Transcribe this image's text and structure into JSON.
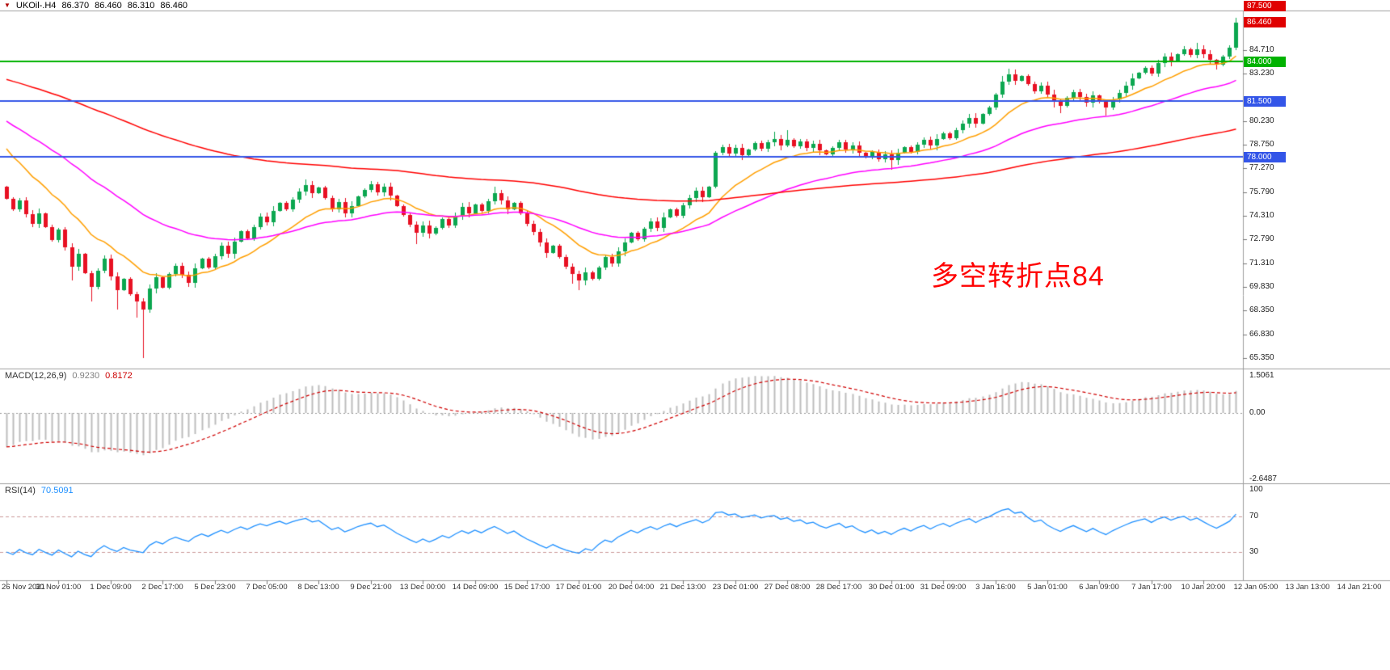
{
  "header": {
    "dropdown_icon": "▼",
    "symbol": "UKOil-.H4",
    "open": "86.370",
    "high": "86.460",
    "low": "86.310",
    "close": "86.460"
  },
  "annotation": {
    "text": "多空转折点84",
    "color": "#ff0000"
  },
  "price_scale": {
    "ticks": [
      "84.710",
      "83.230",
      "80.230",
      "78.750",
      "77.270",
      "75.790",
      "74.310",
      "72.790",
      "71.310",
      "69.830",
      "68.350",
      "66.830",
      "65.350"
    ],
    "markers": [
      {
        "text": "87.500",
        "value": 87.5,
        "color": "#e00000"
      },
      {
        "text": "86.460",
        "value": 86.46,
        "color": "#e00000"
      },
      {
        "text": "84.000",
        "value": 84.0,
        "color": "#00b200"
      },
      {
        "text": "81.500",
        "value": 81.5,
        "color": "#3355e8"
      },
      {
        "text": "78.000",
        "value": 78.0,
        "color": "#3355e8"
      }
    ]
  },
  "macd_panel": {
    "name": "MACD(12,26,9)",
    "value_main": "0.9230",
    "value_signal": "0.8172",
    "scale": [
      {
        "text": "1.5061",
        "value": 1.5061
      },
      {
        "text": "0.00",
        "value": 0
      },
      {
        "text": "-2.6487",
        "value": -2.6487
      }
    ]
  },
  "rsi_panel": {
    "name": "RSI(14)",
    "value": "70.5091",
    "scale": [
      {
        "text": "100",
        "value": 100
      },
      {
        "text": "70",
        "value": 70
      },
      {
        "text": "30",
        "value": 30
      }
    ],
    "levels": [
      70,
      30
    ]
  },
  "colors": {
    "up": "#0ca750",
    "down": "#e81123",
    "ma_fast": "#ff9f00",
    "ma_mid": "#ff00ff",
    "ma_slow": "#ff0000",
    "hline_green": "#00b200",
    "hline_blue": "#3355e8",
    "macd_hist": "#bdbdbd",
    "macd_signal": "#d00000",
    "rsi_line": "#1e90ff",
    "rsi_level": "#cc9999",
    "marker_red": "#e00000"
  },
  "chart_data": {
    "type": "candlestick",
    "symbol": "UKOil-",
    "timeframe": "H4",
    "title": "UKOil-.H4",
    "ylim": [
      64.6,
      87.9
    ],
    "ohlc_current": {
      "open": 86.37,
      "high": 86.46,
      "low": 86.31,
      "close": 86.46
    },
    "x_labels": [
      "26 Nov 2021",
      "30 Nov 01:00",
      "1 Dec 09:00",
      "2 Dec 17:00",
      "5 Dec 23:00",
      "7 Dec 05:00",
      "8 Dec 13:00",
      "9 Dec 21:00",
      "13 Dec 00:00",
      "14 Dec 09:00",
      "15 Dec 17:00",
      "17 Dec 01:00",
      "20 Dec 04:00",
      "21 Dec 13:00",
      "23 Dec 01:00",
      "27 Dec 08:00",
      "28 Dec 17:00",
      "30 Dec 01:00",
      "31 Dec 09:00",
      "3 Jan 16:00",
      "5 Jan 01:00",
      "6 Jan 09:00",
      "7 Jan 17:00",
      "10 Jan 20:00",
      "12 Jan 05:00",
      "13 Jan 13:00",
      "14 Jan 21:00"
    ],
    "first_open": 76.1,
    "close": [
      75.35,
      74.7,
      75.25,
      74.4,
      73.8,
      74.45,
      73.6,
      72.75,
      73.4,
      72.3,
      71.1,
      71.9,
      70.7,
      69.8,
      70.85,
      71.6,
      70.45,
      69.6,
      70.3,
      69.35,
      68.9,
      68.4,
      69.7,
      70.4,
      69.75,
      70.6,
      71.15,
      70.55,
      70.05,
      71.0,
      71.6,
      71.05,
      71.75,
      72.4,
      71.9,
      72.65,
      73.3,
      72.85,
      73.6,
      74.25,
      73.9,
      74.6,
      75.1,
      74.7,
      75.3,
      75.8,
      76.2,
      75.7,
      76.05,
      75.4,
      74.7,
      75.15,
      74.45,
      74.9,
      75.5,
      75.9,
      76.25,
      75.75,
      76.1,
      75.55,
      74.9,
      74.35,
      73.75,
      73.2,
      73.7,
      73.15,
      73.55,
      74.1,
      73.7,
      74.3,
      74.85,
      74.45,
      75.0,
      74.6,
      75.2,
      75.7,
      75.25,
      74.7,
      75.1,
      74.45,
      73.8,
      73.25,
      72.6,
      71.95,
      72.4,
      71.7,
      71.1,
      70.6,
      70.2,
      70.75,
      70.3,
      71.05,
      71.7,
      71.3,
      72.05,
      72.6,
      73.2,
      72.8,
      73.45,
      73.95,
      73.55,
      74.2,
      74.7,
      74.3,
      74.95,
      75.4,
      75.85,
      75.45,
      76.1,
      78.25,
      78.6,
      78.2,
      78.55,
      78.1,
      78.45,
      78.85,
      78.5,
      78.9,
      79.1,
      78.7,
      79.05,
      78.65,
      78.95,
      78.55,
      78.8,
      78.4,
      78.15,
      78.55,
      78.9,
      78.45,
      78.7,
      78.25,
      77.95,
      78.3,
      77.85,
      78.15,
      77.8,
      78.25,
      78.6,
      78.3,
      78.75,
      79.05,
      78.7,
      79.15,
      79.5,
      79.2,
      79.7,
      80.1,
      80.45,
      80.1,
      80.7,
      81.1,
      81.9,
      82.75,
      83.2,
      82.8,
      83.1,
      82.6,
      82.15,
      82.5,
      81.95,
      81.55,
      81.2,
      81.7,
      82.1,
      81.75,
      81.4,
      81.85,
      81.45,
      81.1,
      81.6,
      82.05,
      82.5,
      82.95,
      83.3,
      83.6,
      83.25,
      83.9,
      84.3,
      84.0,
      84.45,
      84.75,
      84.4,
      84.8,
      84.45,
      84.1,
      83.8,
      84.3,
      84.9,
      86.46
    ],
    "wick_overrides": {
      "10": {
        "low": 70.2
      },
      "13": {
        "low": 68.9
      },
      "17": {
        "low": 68.4
      },
      "20": {
        "low": 67.9
      },
      "21": {
        "low": 65.35
      },
      "46": {
        "high": 76.6
      },
      "56": {
        "high": 76.5
      },
      "63": {
        "low": 72.5
      },
      "75": {
        "high": 76.1
      },
      "87": {
        "low": 70.0
      },
      "88": {
        "low": 69.6
      },
      "118": {
        "high": 79.6
      },
      "120": {
        "high": 79.7
      },
      "136": {
        "low": 77.2
      },
      "153": {
        "high": 83.1
      },
      "154": {
        "high": 83.55
      },
      "161": {
        "low": 81.1
      },
      "162": {
        "low": 80.75
      },
      "169": {
        "low": 80.6
      },
      "181": {
        "high": 85.0
      },
      "183": {
        "high": 85.2
      },
      "186": {
        "low": 83.5
      },
      "189": {
        "high": 86.75
      }
    },
    "hlines": [
      {
        "price": 84.0,
        "label": "84.000",
        "color": "#00b200"
      },
      {
        "price": 81.5,
        "label": "81.500",
        "color": "#3355e8"
      },
      {
        "price": 78.0,
        "label": "78.000",
        "color": "#3355e8"
      }
    ],
    "current_price": 86.46,
    "moving_averages": [
      {
        "color": "#ff9f00"
      },
      {
        "color": "#ff00ff"
      },
      {
        "color": "#ff0000"
      }
    ],
    "indicators": {
      "macd": {
        "fast": 12,
        "slow": 26,
        "signal": 9,
        "current_main": 0.923,
        "current_signal": 0.8172,
        "ylim": [
          -2.6487,
          1.5061
        ]
      },
      "rsi": {
        "period": 14,
        "current": 70.5091,
        "levels": [
          30,
          70
        ],
        "scale_ticks": [
          100,
          70,
          30
        ]
      }
    }
  }
}
